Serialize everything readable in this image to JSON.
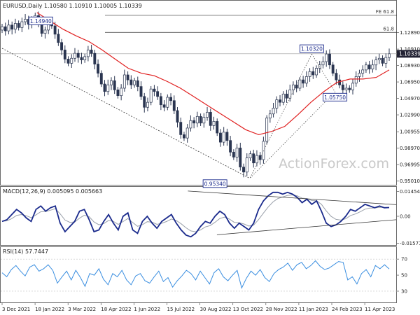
{
  "chart_data": {
    "type": "line",
    "main": {
      "title": "EURUSD,Daily  1.10580 1.10910 1.10005 1.10339",
      "y_range": [
        0.9465,
        1.1665
      ],
      "y_ticks": [
        "1.12890",
        "1.10910",
        "1.08930",
        "1.06950",
        "1.04970",
        "1.02990",
        "1.00955",
        "0.98970",
        "0.96995",
        "0.95010"
      ],
      "price_label": "1.10339",
      "watermark": "ActionForex.com",
      "fib_levels": [
        {
          "label": "FE 61.8",
          "value": 1.1497
        },
        {
          "label": "61.8",
          "value": 1.1292
        }
      ],
      "callouts": [
        "1.14940",
        "0.95340",
        "1.10320",
        "1.05750"
      ],
      "candle_closes": [
        1.136,
        1.131,
        1.138,
        1.133,
        1.14,
        1.135,
        1.142,
        1.145,
        1.139,
        1.143,
        1.1494,
        1.141,
        1.128,
        1.132,
        1.142,
        1.137,
        1.127,
        1.117,
        1.108,
        1.097,
        1.092,
        1.098,
        1.104,
        1.099,
        1.096,
        1.1,
        1.108,
        1.104,
        1.091,
        1.08,
        1.067,
        1.058,
        1.066,
        1.071,
        1.06,
        1.053,
        1.062,
        1.078,
        1.072,
        1.066,
        1.071,
        1.064,
        1.052,
        1.039,
        1.045,
        1.061,
        1.058,
        1.052,
        1.042,
        1.039,
        1.051,
        1.047,
        1.035,
        1.021,
        1.006,
        1.002,
        1.014,
        1.023,
        1.02,
        1.028,
        1.02,
        1.027,
        1.033,
        1.017,
        1.022,
        1.008,
        0.997,
        1.009,
        0.999,
        0.985,
        0.979,
        0.99,
        0.967,
        0.961,
        0.978,
        0.983,
        0.972,
        0.981,
        0.976,
        0.998,
        1.026,
        1.031,
        1.038,
        1.048,
        1.045,
        1.055,
        1.05,
        1.06,
        1.066,
        1.062,
        1.072,
        1.068,
        1.076,
        1.082,
        1.078,
        1.086,
        1.09,
        1.094,
        1.1032,
        1.09,
        1.08,
        1.072,
        1.066,
        1.06,
        1.062,
        1.06,
        1.068,
        1.076,
        1.08,
        1.084,
        1.09,
        1.085,
        1.09,
        1.096,
        1.098,
        1.092,
        1.099,
        1.1034
      ],
      "sma": {
        "x_start": 0.09,
        "values": [
          1.153,
          1.143,
          1.133,
          1.125,
          1.118,
          1.108,
          1.097,
          1.086,
          1.08,
          1.077,
          1.07,
          1.062,
          1.052,
          1.042,
          1.032,
          1.022,
          1.012,
          1.006,
          1.01,
          1.016,
          1.03,
          1.045,
          1.058,
          1.069,
          1.073,
          1.073,
          1.075,
          1.084
        ]
      },
      "trendline": {
        "from": [
          0.0,
          1.11
        ],
        "to": [
          0.64,
          0.9534
        ]
      }
    },
    "macd": {
      "title": "MACD(12,26,9) 0.005095 0.005663",
      "y_range": [
        -0.0168,
        0.0172
      ],
      "y_ticks": [
        "0.014549",
        "0.00",
        "-0.015712"
      ],
      "values": [
        -0.003,
        -0.002,
        0.001,
        0.004,
        0.002,
        -0.001,
        -0.003,
        0.004,
        0.006,
        0.003,
        0.005,
        0.006,
        -0.004,
        -0.009,
        -0.006,
        -0.003,
        0.003,
        0.004,
        -0.002,
        -0.009,
        -0.008,
        -0.003,
        0.001,
        -0.004,
        -0.008,
        0.0,
        0.002,
        -0.008,
        -0.01,
        -0.003,
        0.0,
        -0.004,
        -0.007,
        -0.003,
        -0.001,
        0.001,
        -0.004,
        -0.008,
        -0.011,
        -0.012,
        -0.01,
        -0.006,
        -0.003,
        -0.004,
        0.0,
        0.003,
        0.001,
        -0.004,
        -0.007,
        -0.004,
        -0.006,
        -0.008,
        -0.004,
        0.004,
        0.009,
        0.012,
        0.014,
        0.014,
        0.013,
        0.014,
        0.013,
        0.011,
        0.008,
        0.01,
        0.007,
        0.009,
        0.003,
        -0.004,
        -0.006,
        -0.005,
        -0.003,
        0.0,
        0.004,
        0.003,
        0.005,
        0.007,
        0.006,
        0.005,
        0.006,
        0.005,
        0.0051
      ],
      "trendlines": [
        {
          "from": [
            0.48,
            0.0148
          ],
          "to": [
            0.99,
            0.0068
          ]
        },
        {
          "from": [
            0.555,
            -0.0108
          ],
          "to": [
            0.99,
            -0.002
          ]
        }
      ]
    },
    "rsi": {
      "title": "RSI(14) 57.7447",
      "y_range": [
        16,
        85
      ],
      "y_ticks": [
        "70",
        "50",
        "30"
      ],
      "values": [
        53,
        48,
        57,
        62,
        55,
        49,
        60,
        63,
        55,
        58,
        63,
        56,
        40,
        48,
        55,
        44,
        56,
        47,
        36,
        52,
        50,
        58,
        45,
        38,
        52,
        48,
        56,
        44,
        38,
        49,
        52,
        43,
        40,
        48,
        55,
        42,
        47,
        35,
        43,
        49,
        56,
        52,
        44,
        55,
        47,
        39,
        53,
        58,
        48,
        43,
        50,
        56,
        34,
        46,
        55,
        50,
        57,
        47,
        42,
        52,
        57,
        60,
        65,
        56,
        63,
        66,
        58,
        62,
        68,
        61,
        57,
        59,
        63,
        67,
        66,
        44,
        48,
        39,
        52,
        57,
        48,
        62,
        58,
        63,
        57.7
      ]
    },
    "x_ticks": [
      "3 Dec 2021",
      "18 Jan 2022",
      "3 Mar 2022",
      "18 Apr 2022",
      "1 Jun 2022",
      "15 Jul 2022",
      "30 Aug 2022",
      "13 Oct 2022",
      "28 Nov 2022",
      "11 Jan 2023",
      "24 Feb 2023",
      "11 Apr 2023"
    ],
    "colors": {
      "candle": "#2a3550",
      "sma": "#e02020",
      "macd": "#1a2a8c",
      "macd_signal": "#9aa0aa",
      "rsi": "#3a8ee0",
      "trendline": "#333333",
      "price_box": "#222233",
      "callout_border": "#1a2a8c"
    }
  }
}
